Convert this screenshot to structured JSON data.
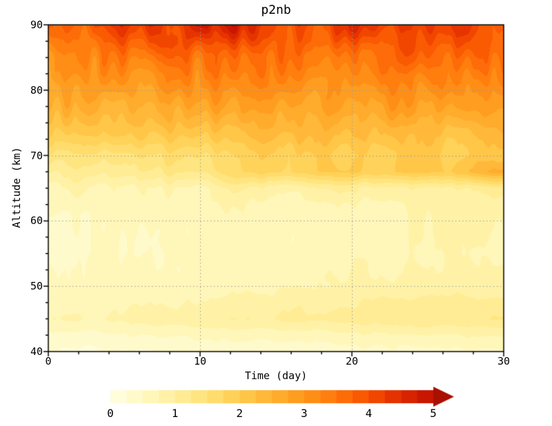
{
  "colors": {
    "background": "#FFFFFF",
    "frame": "#000000",
    "grid_line": "#999999",
    "text": "#000000",
    "overflow": "#A81000"
  },
  "chart_data": {
    "type": "heatmap",
    "title": "p2nb",
    "xlabel": "Time (day)",
    "ylabel": "Altitude (km)",
    "xlim": [
      0,
      30
    ],
    "ylim": [
      40,
      90
    ],
    "zlim": [
      0,
      5
    ],
    "x_ticks": [
      0,
      10,
      20,
      30
    ],
    "y_ticks": [
      40,
      50,
      60,
      70,
      80,
      90
    ],
    "colorbar_ticks": [
      0,
      1,
      2,
      3,
      4,
      5
    ],
    "contour_step": 0.25,
    "grid": {
      "x": [
        10,
        20
      ],
      "y": [
        50,
        60,
        70,
        80
      ]
    },
    "colormap": [
      {
        "v": 0.0,
        "c": "#FFFFE5"
      },
      {
        "v": 0.5,
        "c": "#FFF9C2"
      },
      {
        "v": 1.0,
        "c": "#FFEF9E"
      },
      {
        "v": 1.5,
        "c": "#FFE276"
      },
      {
        "v": 2.0,
        "c": "#FFCC4F"
      },
      {
        "v": 2.5,
        "c": "#FFB232"
      },
      {
        "v": 3.0,
        "c": "#FF961B"
      },
      {
        "v": 3.5,
        "c": "#FF760A"
      },
      {
        "v": 4.0,
        "c": "#F75000"
      },
      {
        "v": 4.5,
        "c": "#E02A00"
      },
      {
        "v": 5.0,
        "c": "#C21000"
      },
      {
        "v": 5.5,
        "c": "#A81000"
      }
    ],
    "x": [
      0,
      2,
      4,
      6,
      8,
      10,
      12,
      14,
      16,
      18,
      20,
      22,
      24,
      26,
      28,
      30
    ],
    "y": [
      40,
      42.5,
      45,
      47.5,
      50,
      55,
      60,
      62.5,
      65,
      67.5,
      70,
      72.5,
      75,
      77.5,
      80,
      82.5,
      85,
      87.5,
      90
    ],
    "values": [
      [
        0.2,
        0.2,
        0.25,
        0.25,
        0.3,
        0.3,
        0.3,
        0.3,
        0.35,
        0.35,
        0.4,
        0.4,
        0.4,
        0.45,
        0.45,
        0.5
      ],
      [
        0.4,
        0.4,
        0.45,
        0.5,
        0.5,
        0.55,
        0.6,
        0.6,
        0.6,
        0.65,
        0.7,
        0.7,
        0.75,
        0.75,
        0.8,
        0.8
      ],
      [
        0.7,
        0.75,
        0.8,
        0.85,
        0.9,
        0.95,
        1.0,
        1.0,
        1.05,
        1.1,
        1.1,
        1.15,
        1.2,
        1.2,
        1.25,
        1.3
      ],
      [
        0.6,
        0.6,
        0.65,
        0.7,
        0.7,
        0.75,
        0.8,
        0.85,
        0.9,
        0.95,
        1.0,
        1.05,
        1.1,
        1.1,
        1.1,
        1.1
      ],
      [
        0.5,
        0.5,
        0.55,
        0.55,
        0.6,
        0.6,
        0.65,
        0.65,
        0.7,
        0.75,
        0.8,
        0.8,
        0.85,
        0.85,
        0.9,
        0.9
      ],
      [
        0.45,
        0.45,
        0.5,
        0.5,
        0.5,
        0.55,
        0.55,
        0.6,
        0.6,
        0.6,
        0.65,
        0.65,
        0.65,
        0.7,
        0.7,
        0.7
      ],
      [
        0.5,
        0.5,
        0.55,
        0.55,
        0.6,
        0.6,
        0.6,
        0.65,
        0.65,
        0.65,
        0.7,
        0.7,
        0.7,
        0.75,
        0.75,
        0.75
      ],
      [
        0.55,
        0.6,
        0.6,
        0.6,
        0.65,
        0.65,
        0.7,
        0.7,
        0.7,
        0.75,
        0.75,
        0.75,
        0.8,
        0.8,
        0.8,
        0.8
      ],
      [
        0.65,
        0.7,
        0.7,
        0.75,
        0.8,
        0.85,
        0.9,
        0.95,
        1.0,
        1.0,
        1.0,
        1.05,
        1.05,
        1.1,
        1.1,
        1.1
      ],
      [
        1.0,
        1.1,
        1.15,
        1.2,
        1.3,
        1.45,
        1.6,
        1.75,
        1.85,
        1.95,
        2.0,
        2.0,
        2.05,
        2.1,
        2.3,
        2.6
      ],
      [
        1.4,
        1.45,
        1.5,
        1.55,
        1.6,
        1.7,
        1.75,
        1.8,
        1.85,
        1.9,
        1.9,
        1.9,
        1.95,
        1.95,
        2.0,
        2.0
      ],
      [
        1.8,
        1.85,
        1.9,
        1.95,
        2.0,
        2.05,
        2.1,
        2.15,
        2.15,
        2.2,
        2.2,
        2.2,
        2.25,
        2.25,
        2.3,
        2.3
      ],
      [
        2.15,
        2.2,
        2.25,
        2.3,
        2.35,
        2.4,
        2.4,
        2.45,
        2.45,
        2.5,
        2.5,
        2.5,
        2.55,
        2.55,
        2.6,
        2.6
      ],
      [
        2.45,
        2.5,
        2.55,
        2.6,
        2.65,
        2.7,
        2.7,
        2.75,
        2.75,
        2.8,
        2.8,
        2.8,
        2.85,
        2.85,
        2.9,
        2.9
      ],
      [
        2.75,
        2.8,
        2.85,
        2.9,
        2.95,
        3.0,
        3.0,
        3.05,
        3.05,
        3.0,
        3.05,
        3.1,
        3.1,
        3.15,
        3.1,
        3.1
      ],
      [
        3.0,
        3.05,
        3.1,
        3.2,
        3.25,
        3.3,
        3.35,
        3.35,
        3.3,
        3.25,
        3.3,
        3.35,
        3.35,
        3.4,
        3.35,
        3.35
      ],
      [
        3.2,
        3.3,
        3.4,
        3.5,
        3.55,
        3.65,
        3.75,
        3.7,
        3.6,
        3.5,
        3.55,
        3.65,
        3.6,
        3.65,
        3.6,
        3.6
      ],
      [
        3.5,
        3.6,
        3.75,
        3.9,
        4.0,
        4.15,
        4.25,
        4.15,
        4.0,
        3.9,
        3.95,
        4.05,
        3.9,
        4.0,
        3.9,
        3.9
      ],
      [
        3.8,
        3.95,
        4.15,
        4.3,
        4.4,
        4.55,
        4.65,
        4.5,
        4.3,
        4.2,
        4.3,
        4.4,
        4.2,
        4.3,
        4.2,
        4.2
      ]
    ]
  }
}
